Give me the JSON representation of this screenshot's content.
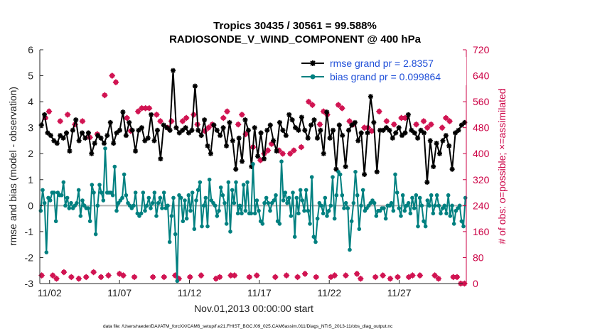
{
  "chart_data": {
    "type": "line",
    "title_line1": "Tropics 30435 / 30561 = 99.588%",
    "title_line2": "RADIOSONDE_V_WIND_COMPONENT @ 400 hPa",
    "xlabel": "Nov.01,2013 00:00:00 start",
    "ylabel_left": "rmse and bias (model - observation)",
    "ylabel_right": "# of obs: o=possible; ×=assimilated",
    "ylim_left": [
      -3,
      6
    ],
    "ylim_right": [
      0,
      720
    ],
    "xlim": [
      0,
      30.5
    ],
    "left_ticks": [
      "-3",
      "-2",
      "-1",
      "0",
      "1",
      "2",
      "3",
      "4",
      "5",
      "6"
    ],
    "right_ticks": [
      "0",
      "80",
      "160",
      "240",
      "320",
      "400",
      "480",
      "560",
      "640",
      "720"
    ],
    "x_ticks": [
      {
        "x": 0.7,
        "label": "11/02"
      },
      {
        "x": 5.7,
        "label": "11/07"
      },
      {
        "x": 10.7,
        "label": "11/12"
      },
      {
        "x": 15.7,
        "label": "11/17"
      },
      {
        "x": 20.7,
        "label": "11/22"
      },
      {
        "x": 25.7,
        "label": "11/27"
      }
    ],
    "footer": "data file: /Users/raeder/DAI/ATM_forcXX/CAM6_setup/f.e21.FHIST_BGC.f09_025.CAM6assim.011/Diags_NTrS_2013-11/obs_diag_output.nc",
    "colors": {
      "rmse": "#000000",
      "bias": "#008080",
      "obs": "#d11452",
      "axis_right": "#cc0044",
      "legend_text": "#1f4fd8",
      "zero_line": "#b0b0b0"
    },
    "series": [
      {
        "name": "rmse grand pr = 2.8357",
        "values": [
          3.1,
          3.5,
          2.8,
          2.7,
          2.5,
          2.4,
          2.7,
          2.6,
          2.8,
          2.1,
          2.9,
          3.3,
          2.5,
          2.8,
          2.6,
          2.8,
          2.0,
          2.4,
          2.7,
          2.6,
          2.4,
          2.7,
          3.2,
          2.4,
          2.8,
          2.9,
          3.6,
          2.7,
          3.2,
          2.9,
          2.1,
          2.9,
          3.0,
          2.5,
          2.6,
          3.5,
          2.5,
          2.9,
          1.8,
          3.1,
          3.0,
          2.9,
          5.2,
          3.0,
          2.8,
          2.9,
          3.0,
          2.8,
          2.9,
          4.6,
          2.9,
          2.7,
          3.3,
          2.3,
          2.0,
          3.1,
          2.9,
          2.7,
          3.0,
          2.3,
          3.2,
          2.5,
          1.4,
          2.6,
          1.7,
          3.3,
          2.9,
          1.5,
          3.0,
          1.9,
          2.8,
          1.8,
          2.9,
          3.1,
          2.5,
          2.1,
          3.2,
          2.9,
          2.7,
          3.5,
          3.3,
          3.0,
          2.9,
          3.4,
          2.9,
          2.6,
          3.1,
          3.3,
          2.6,
          2.9,
          2.0,
          3.6,
          2.6,
          2.9,
          1.4,
          3.1,
          2.7,
          1.5,
          2.9,
          3.1,
          3.2,
          2.5,
          2.8,
          1.2,
          2.8,
          4.2,
          3.2,
          1.3,
          2.9,
          2.9,
          3.0,
          2.9,
          2.6,
          2.8,
          3.0,
          2.7,
          2.8,
          3.5,
          2.9,
          2.8,
          2.6,
          2.9,
          2.8,
          0.9,
          2.5,
          1.5,
          2.4,
          2.0,
          2.5,
          2.7,
          2.3,
          1.4,
          2.8,
          2.9,
          3.1,
          3.2
        ]
      },
      {
        "name": "bias grand pr = 0.099864",
        "values": [
          -0.2,
          0.6,
          0.1,
          -1.8,
          0.3,
          0.2,
          0.5,
          0.5,
          -0.6,
          0.5,
          0.4,
          0.4,
          0.9,
          0.0,
          0.3,
          -0.1,
          0.1,
          -0.1,
          0.0,
          0.1,
          0.6,
          -0.4,
          0.2,
          0.0,
          -0.1,
          -0.1,
          -0.6,
          0.8,
          0.5,
          -1.1,
          0.0,
          0.8,
          0.5,
          0.2,
          2.2,
          0.5,
          0.5,
          0.5,
          0.4,
          1.5,
          -0.2,
          0.1,
          0.2,
          0.3,
          1.2,
          0.4,
          0.1,
          0.0,
          -0.1,
          0.0,
          0.5,
          -0.3,
          -0.4,
          -0.3,
          0.5,
          -0.2,
          0.0,
          0.3,
          -0.1,
          0.1,
          0.5,
          -0.4,
          0.1,
          0.3,
          -0.1,
          0.5,
          -0.1,
          0.0,
          -1.4,
          -0.4,
          0.3,
          -1.1,
          -2.9,
          0.4,
          0.3,
          -0.6,
          0.2,
          -0.5,
          0.4,
          -0.2,
          0.5,
          -0.9,
          0.2,
          0.6,
          0.9,
          -0.8,
          0.0,
          0.3,
          -0.8,
          1.0,
          0.2,
          0.1,
          0.0,
          -0.4,
          -0.2,
          0.7,
          0.4,
          0.1,
          -0.7,
          0.9,
          -1.0,
          0.6,
          0.1,
          0.9,
          -0.3,
          0.0,
          -0.3,
          0.8,
          -0.2,
          0.9,
          -0.3,
          -0.3,
          1.6,
          -0.3,
          0.2,
          -0.2,
          -0.6,
          -0.7,
          0.1,
          0.3,
          0.1,
          -0.2,
          0.1,
          0.2,
          0.4,
          -0.6,
          -0.7,
          1.7,
          0.2,
          0.5,
          0.1,
          0.3,
          -0.4,
          0.5,
          -1.2,
          0.3,
          -0.3,
          0.6,
          0.2,
          -0.2,
          0.6,
          -0.2,
          -0.7,
          1.1,
          -1.2,
          -1.4,
          -0.5,
          0.1,
          0.0,
          -0.3,
          0.3,
          -0.4,
          -0.2,
          0.0,
          1.1,
          -0.5,
          0.4,
          1.3,
          1.2,
          0.4,
          -0.1,
          0.1,
          -0.1,
          -1.7,
          -0.6,
          0.1,
          1.3,
          0.4,
          -0.9,
          0.0,
          0.6,
          -0.2,
          -0.1,
          0.0,
          0.1,
          0.2,
          0.1,
          -0.4,
          -0.2,
          -0.2,
          -0.1,
          -0.1,
          -0.5,
          0.0,
          0.0,
          0.1,
          -0.2,
          1.2,
          0.5,
          -0.1,
          -0.4,
          0.4,
          -0.2,
          0.0,
          0.1,
          -0.3,
          0.3,
          -0.1,
          0.4,
          -0.8,
          0.3,
          0.0,
          -0.6,
          -0.8,
          0.2,
          0.0,
          0.4,
          -0.3,
          0.0,
          0.4,
          0.0,
          -0.3,
          -0.1,
          0.0,
          -0.3,
          0.4,
          -0.4,
          0.0,
          -0.7,
          -0.2,
          -0.1,
          0.0,
          -0.6,
          -0.8,
          0.3
        ]
      },
      {
        "name": "obs possible / assimilated",
        "values": [
          25,
          510,
          530,
          25,
          15,
          500,
          35,
          520,
          20,
          490,
          15,
          500,
          20,
          450,
          35,
          460,
          20,
          580,
          25,
          640,
          620,
          30,
          25,
          510,
          470,
          20,
          530,
          540,
          540,
          540,
          20,
          520,
          500,
          20,
          480,
          500,
          25,
          15,
          500,
          510,
          20,
          520,
          490,
          25,
          470,
          480,
          490,
          15,
          20,
          510,
          530,
          25,
          25,
          490,
          520,
          460,
          20,
          420,
          25,
          380,
          400,
          410,
          430,
          20,
          410,
          400,
          25,
          400,
          410,
          20,
          420,
          30,
          560,
          550,
          20,
          490,
          530,
          520,
          20,
          25,
          550,
          540,
          25,
          500,
          490,
          30,
          15,
          480,
          480,
          470,
          20,
          530,
          25,
          500,
          15,
          490,
          20,
          510,
          510,
          20,
          25,
          490,
          25,
          500,
          480,
          490,
          25,
          15,
          480,
          510,
          500,
          20,
          20,
          0,
          0
        ]
      }
    ],
    "legend": [
      "rmse grand pr = 2.8357",
      "bias grand pr = 0.099864"
    ]
  }
}
